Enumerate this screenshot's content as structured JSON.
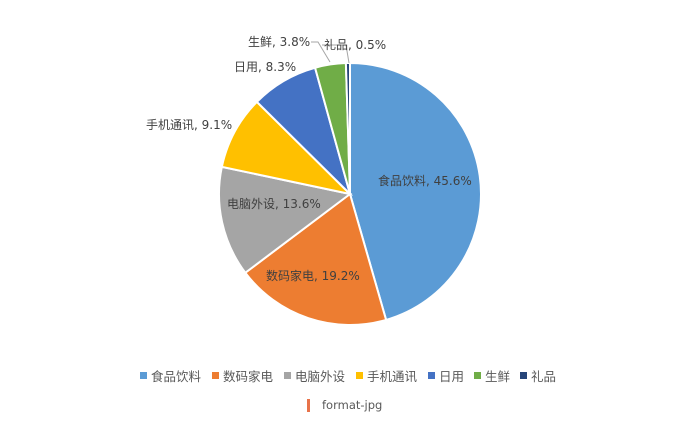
{
  "chart_data": {
    "type": "pie",
    "title": "",
    "categories": [
      "食品饮料",
      "数码家电",
      "电脑外设",
      "手机通讯",
      "日用",
      "生鲜",
      "礼品"
    ],
    "values": [
      45.6,
      19.2,
      13.6,
      9.1,
      8.3,
      3.8,
      0.5
    ],
    "data_labels": [
      "食品饮料, 45.6%",
      "数码家电, 19.2%",
      "电脑外设, 13.6%",
      "手机通讯, 9.1%",
      "日用, 8.3%",
      "生鲜, 3.8%",
      "礼品, 0.5%"
    ],
    "colors": [
      "#5b9bd5",
      "#ed7d31",
      "#a5a5a5",
      "#ffc000",
      "#4472c4",
      "#70ad47",
      "#264478"
    ],
    "start_angle": "12 o'clock",
    "direction": "clockwise",
    "legend_position": "bottom"
  },
  "watermark": {
    "text": "format-jpg",
    "color": "#e8734a"
  }
}
